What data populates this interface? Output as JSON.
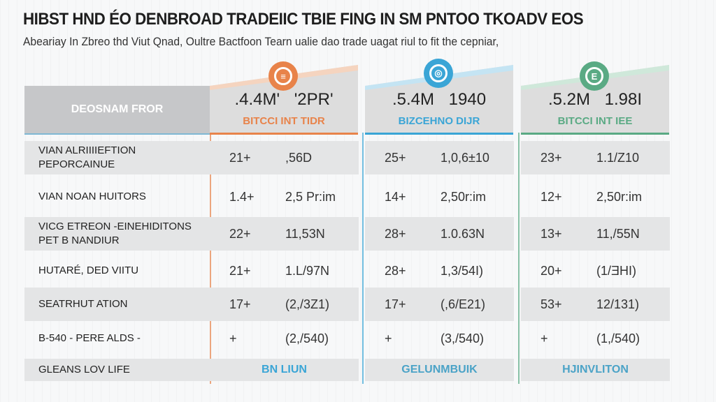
{
  "title": "HIBST HND ÉO DENBROAD TRADEIIC TBIE FING IN SM PNTOO TKOADV EOS",
  "subtitle": "Abeariay In Zbreo thd Viut Qnad, Oultre Bactfoon Tearn ualie dao trade uagat riul to fit the cepniar,",
  "header_left": "DEOSNAM FROR",
  "colors": {
    "orange": "#e8834a",
    "blue": "#3aa5d6",
    "green": "#5aaa84"
  },
  "columns": [
    {
      "icon": "orange-coin-icon",
      "glyph": "≡",
      "value": ".4.4M' '2PR'",
      "ticker": "BITCCI INT TIDR",
      "color": "#e8834a"
    },
    {
      "icon": "blue-globe-icon",
      "glyph": "◎",
      "value": ".5.4M 1940",
      "ticker": "BIZCEHNO DIJR",
      "color": "#3aa5d6"
    },
    {
      "icon": "green-coin-icon",
      "glyph": "E",
      "value": ".5.2M 1.98I",
      "ticker": "BITCCI INT IEE",
      "color": "#5aaa84"
    }
  ],
  "rows": [
    {
      "label": [
        "VIAN ALRIIIIEFTION",
        "PEPORCAINUE"
      ],
      "cells": [
        [
          "21+",
          ",56D"
        ],
        [
          "25+",
          "1,0,6±10"
        ],
        [
          "23+",
          "1.1/Z10"
        ]
      ]
    },
    {
      "label": [
        "VIAN NOAN HUITORS"
      ],
      "cells": [
        [
          "1.4+",
          "2,5 Pr:im"
        ],
        [
          "14+",
          "2,50r:im"
        ],
        [
          "12+",
          "2,50r:im"
        ]
      ]
    },
    {
      "label": [
        "VICG ETREON -EINEHIDITONS",
        "PET B NANDIUR"
      ],
      "cells": [
        [
          "22+",
          "11,53N"
        ],
        [
          "28+",
          "1.0.63N"
        ],
        [
          "13+",
          "11,/55N"
        ]
      ]
    },
    {
      "label": [
        "HUTARÉ, DED VIITU"
      ],
      "cells": [
        [
          "21+",
          "1.L/97N"
        ],
        [
          "28+",
          "1,3/54I)"
        ],
        [
          "20+",
          "(1/ƎHI)"
        ]
      ]
    },
    {
      "label": [
        "SEATRHUT ATION"
      ],
      "cells": [
        [
          "17+",
          "(2,/3Z1)"
        ],
        [
          "17+",
          "(,6/E21)"
        ],
        [
          "53+",
          "12/131)"
        ]
      ]
    },
    {
      "label": [
        "B-540 - PERE ALDS -"
      ],
      "cells": [
        [
          "+",
          "(2,/540)"
        ],
        [
          "+",
          "(3,/540)"
        ],
        [
          "+",
          "(1,/540)"
        ]
      ]
    }
  ],
  "footer": {
    "label": "GLEANS LOV LIFE",
    "cells": [
      "BN LIUN",
      "GELUNMBUIK",
      "HJINVLITON"
    ]
  }
}
